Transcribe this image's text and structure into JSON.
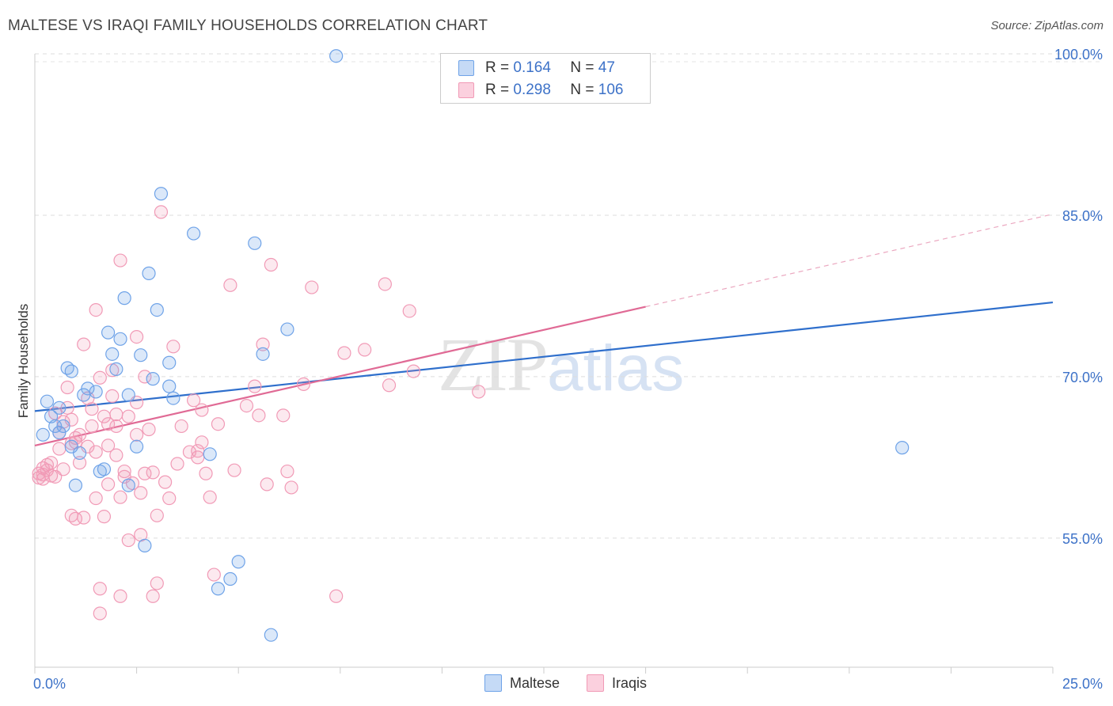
{
  "title": "MALTESE VS IRAQI FAMILY HOUSEHOLDS CORRELATION CHART",
  "source": "Source: ZipAtlas.com",
  "watermark": {
    "zip": "ZIP",
    "atlas": "atlas"
  },
  "colors": {
    "maltese": "#6fa3e8",
    "maltese_line": "#2f6fcc",
    "iraqis": "#f19ab6",
    "iraqis_line": "#e06a95",
    "axis_text": "#3d72c8"
  },
  "legend": {
    "rows": [
      {
        "r_label": "R = ",
        "r_value": "0.164",
        "n_label": "N = ",
        "n_value": "47"
      },
      {
        "r_label": "R = ",
        "r_value": "0.298",
        "n_label": "N = ",
        "n_value": "106"
      }
    ]
  },
  "bottom_legend": [
    "Maltese",
    "Iraqis"
  ],
  "chart_data": {
    "type": "scatter",
    "xlabel": "",
    "ylabel": "Family Households",
    "xlim": [
      0,
      25
    ],
    "ylim": [
      43,
      100
    ],
    "x_tick_labels": [
      "0.0%",
      "25.0%"
    ],
    "y_tick_labels": [
      "100.0%",
      "85.0%",
      "70.0%",
      "55.0%"
    ],
    "y_ticks": [
      100,
      85,
      70,
      55
    ],
    "grid": true,
    "legend_position": "top-center",
    "series": [
      {
        "name": "Maltese",
        "r": 0.164,
        "n": 47,
        "trend": {
          "x": [
            0,
            25
          ],
          "y": [
            66.8,
            76.9
          ]
        },
        "points": [
          [
            0.2,
            64.6
          ],
          [
            0.3,
            67.7
          ],
          [
            0.4,
            66.3
          ],
          [
            0.5,
            65.4
          ],
          [
            0.6,
            64.8
          ],
          [
            0.6,
            67.1
          ],
          [
            0.7,
            65.4
          ],
          [
            0.8,
            70.8
          ],
          [
            0.9,
            63.5
          ],
          [
            0.9,
            70.5
          ],
          [
            1.0,
            59.9
          ],
          [
            1.1,
            62.9
          ],
          [
            1.2,
            68.3
          ],
          [
            1.3,
            68.9
          ],
          [
            1.5,
            68.6
          ],
          [
            1.6,
            61.2
          ],
          [
            1.7,
            61.4
          ],
          [
            1.8,
            74.1
          ],
          [
            1.9,
            72.1
          ],
          [
            2.0,
            70.7
          ],
          [
            2.1,
            73.5
          ],
          [
            2.2,
            77.3
          ],
          [
            2.3,
            68.3
          ],
          [
            2.3,
            59.9
          ],
          [
            2.5,
            63.5
          ],
          [
            2.6,
            72.0
          ],
          [
            2.7,
            54.3
          ],
          [
            2.8,
            79.6
          ],
          [
            2.9,
            69.8
          ],
          [
            3.0,
            76.2
          ],
          [
            3.1,
            87.0
          ],
          [
            3.3,
            69.1
          ],
          [
            3.3,
            71.3
          ],
          [
            3.4,
            68.0
          ],
          [
            3.9,
            83.3
          ],
          [
            4.3,
            62.8
          ],
          [
            4.5,
            50.3
          ],
          [
            4.8,
            51.2
          ],
          [
            5.0,
            52.8
          ],
          [
            5.4,
            82.4
          ],
          [
            5.6,
            72.1
          ],
          [
            5.8,
            46.0
          ],
          [
            6.2,
            74.4
          ],
          [
            7.4,
            99.8
          ],
          [
            21.3,
            63.4
          ]
        ]
      },
      {
        "name": "Iraqis",
        "r": 0.298,
        "n": 106,
        "trend": {
          "x": [
            0,
            15
          ],
          "y": [
            63.6,
            76.5
          ],
          "dashed_to": {
            "x": 25,
            "y": 85.1
          }
        },
        "points": [
          [
            0.1,
            61.0
          ],
          [
            0.1,
            60.6
          ],
          [
            0.2,
            61.5
          ],
          [
            0.2,
            60.9
          ],
          [
            0.2,
            60.5
          ],
          [
            0.3,
            61.8
          ],
          [
            0.3,
            61.3
          ],
          [
            0.4,
            62.0
          ],
          [
            0.4,
            60.8
          ],
          [
            0.5,
            66.6
          ],
          [
            0.5,
            60.7
          ],
          [
            0.6,
            63.3
          ],
          [
            0.6,
            64.8
          ],
          [
            0.7,
            61.4
          ],
          [
            0.7,
            65.8
          ],
          [
            0.8,
            69.0
          ],
          [
            0.8,
            67.1
          ],
          [
            0.9,
            66.0
          ],
          [
            0.9,
            63.8
          ],
          [
            0.9,
            57.1
          ],
          [
            1.0,
            63.9
          ],
          [
            1.0,
            56.8
          ],
          [
            1.0,
            64.3
          ],
          [
            1.1,
            62.0
          ],
          [
            1.1,
            64.6
          ],
          [
            1.2,
            73.0
          ],
          [
            1.2,
            56.9
          ],
          [
            1.3,
            63.5
          ],
          [
            1.3,
            68.0
          ],
          [
            1.4,
            67.0
          ],
          [
            1.4,
            65.4
          ],
          [
            1.5,
            63.0
          ],
          [
            1.5,
            58.7
          ],
          [
            1.5,
            76.2
          ],
          [
            1.6,
            69.9
          ],
          [
            1.6,
            50.3
          ],
          [
            1.6,
            48.0
          ],
          [
            1.7,
            66.3
          ],
          [
            1.7,
            57.0
          ],
          [
            1.8,
            65.6
          ],
          [
            1.8,
            63.6
          ],
          [
            1.8,
            60.0
          ],
          [
            1.9,
            68.2
          ],
          [
            1.9,
            70.6
          ],
          [
            2.0,
            62.7
          ],
          [
            2.0,
            65.4
          ],
          [
            2.0,
            66.5
          ],
          [
            2.1,
            49.6
          ],
          [
            2.1,
            58.8
          ],
          [
            2.1,
            80.8
          ],
          [
            2.2,
            61.2
          ],
          [
            2.2,
            60.7
          ],
          [
            2.3,
            66.3
          ],
          [
            2.3,
            54.8
          ],
          [
            2.4,
            60.1
          ],
          [
            2.5,
            64.6
          ],
          [
            2.5,
            73.7
          ],
          [
            2.5,
            67.6
          ],
          [
            2.6,
            59.2
          ],
          [
            2.6,
            55.3
          ],
          [
            2.7,
            61.0
          ],
          [
            2.7,
            70.0
          ],
          [
            2.8,
            65.1
          ],
          [
            2.9,
            49.6
          ],
          [
            2.9,
            61.1
          ],
          [
            3.0,
            57.1
          ],
          [
            3.0,
            50.8
          ],
          [
            3.1,
            85.3
          ],
          [
            3.2,
            60.2
          ],
          [
            3.3,
            58.7
          ],
          [
            3.4,
            72.8
          ],
          [
            3.5,
            61.9
          ],
          [
            3.6,
            65.4
          ],
          [
            3.8,
            63.0
          ],
          [
            3.9,
            67.8
          ],
          [
            4.0,
            63.1
          ],
          [
            4.0,
            62.5
          ],
          [
            4.1,
            66.9
          ],
          [
            4.1,
            63.9
          ],
          [
            4.2,
            61.0
          ],
          [
            4.3,
            58.8
          ],
          [
            4.4,
            51.6
          ],
          [
            4.5,
            65.6
          ],
          [
            4.8,
            78.5
          ],
          [
            4.9,
            61.3
          ],
          [
            5.2,
            67.3
          ],
          [
            5.4,
            69.1
          ],
          [
            5.5,
            66.4
          ],
          [
            5.6,
            73.0
          ],
          [
            5.7,
            60.0
          ],
          [
            5.8,
            80.4
          ],
          [
            6.1,
            66.4
          ],
          [
            6.2,
            61.2
          ],
          [
            6.3,
            59.7
          ],
          [
            6.6,
            69.3
          ],
          [
            6.8,
            78.3
          ],
          [
            7.4,
            49.6
          ],
          [
            7.6,
            72.2
          ],
          [
            8.1,
            72.5
          ],
          [
            8.6,
            78.6
          ],
          [
            8.7,
            69.2
          ],
          [
            9.2,
            76.1
          ],
          [
            9.3,
            70.5
          ],
          [
            10.9,
            68.6
          ]
        ]
      }
    ]
  }
}
